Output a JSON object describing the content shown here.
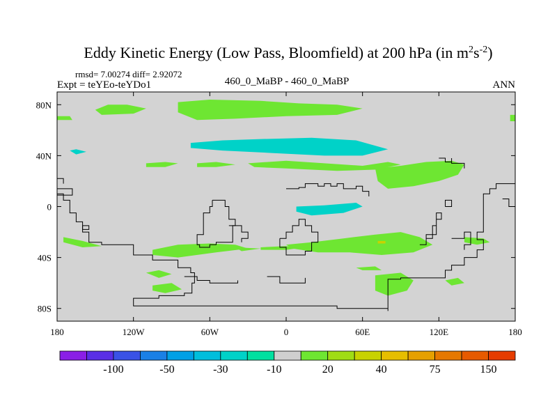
{
  "chart_data": {
    "type": "heatmap",
    "title": "Eddy Kinetic Energy (Low Pass, Bloomfield) at 200 hPa (in m",
    "title_units": {
      "base_m": "m",
      "sup1": "2",
      "base_s": "s",
      "sup2": "-2",
      "close": ")"
    },
    "stats": "rmsd= 7.00274 diff= 2.92072",
    "left_label": "Expt = teYEo-teYDo1",
    "center_label": "460_0_MaBP - 460_0_MaBP",
    "right_label": "ANN",
    "x_range": [
      -180,
      180
    ],
    "y_range": [
      -90,
      90
    ],
    "x_ticks": [
      {
        "value": -180,
        "label": "180"
      },
      {
        "value": -120,
        "label": "120W"
      },
      {
        "value": -60,
        "label": "60W"
      },
      {
        "value": 0,
        "label": "0"
      },
      {
        "value": 60,
        "label": "60E"
      },
      {
        "value": 120,
        "label": "120E"
      },
      {
        "value": 180,
        "label": "180"
      }
    ],
    "y_ticks": [
      {
        "value": 80,
        "label": "80N"
      },
      {
        "value": 40,
        "label": "40N"
      },
      {
        "value": 0,
        "label": "0"
      },
      {
        "value": -40,
        "label": "40S"
      },
      {
        "value": -80,
        "label": "80S"
      }
    ],
    "colorbar": {
      "colors": [
        "#8a1fe6",
        "#5a2ee6",
        "#3a52e6",
        "#1a80e6",
        "#00a0e6",
        "#00bedc",
        "#00d2c8",
        "#00e0a0",
        "#cfcfcf",
        "#6ee632",
        "#a0dc14",
        "#c8d200",
        "#e6be00",
        "#e6a000",
        "#e67800",
        "#e65a00",
        "#e63c00"
      ],
      "labels": [
        {
          "after_index": 1,
          "text": "-100"
        },
        {
          "after_index": 3,
          "text": "-50"
        },
        {
          "after_index": 5,
          "text": "-30"
        },
        {
          "after_index": 7,
          "text": "-10"
        },
        {
          "after_index": 9,
          "text": "20"
        },
        {
          "after_index": 11,
          "text": "40"
        },
        {
          "after_index": 13,
          "text": "75"
        },
        {
          "after_index": 15,
          "text": "150"
        }
      ]
    },
    "background_color": "#d3d3d3",
    "regions": [
      {
        "name": "green-arctic-west",
        "color": "#6ee632",
        "points": [
          [
            -150,
            76
          ],
          [
            -140,
            80
          ],
          [
            -125,
            80
          ],
          [
            -110,
            77
          ],
          [
            -120,
            73
          ],
          [
            -145,
            72
          ]
        ]
      },
      {
        "name": "green-arctic-main",
        "color": "#6ee632",
        "points": [
          [
            -85,
            82
          ],
          [
            -60,
            84
          ],
          [
            -20,
            83
          ],
          [
            10,
            81
          ],
          [
            40,
            80
          ],
          [
            60,
            77
          ],
          [
            40,
            72
          ],
          [
            0,
            71
          ],
          [
            -40,
            69
          ],
          [
            -70,
            68
          ],
          [
            -85,
            74
          ]
        ]
      },
      {
        "name": "green-west-edge",
        "color": "#6ee632",
        "points": [
          [
            -180,
            71
          ],
          [
            -170,
            71
          ],
          [
            -168,
            68
          ],
          [
            -180,
            68
          ]
        ]
      },
      {
        "name": "green-east-edge",
        "color": "#6ee632",
        "points": [
          [
            176,
            72
          ],
          [
            180,
            72
          ],
          [
            180,
            67
          ],
          [
            176,
            67
          ]
        ]
      },
      {
        "name": "cyan-jet",
        "color": "#00d2c8",
        "points": [
          [
            -75,
            50
          ],
          [
            -50,
            52
          ],
          [
            -20,
            53
          ],
          [
            20,
            54
          ],
          [
            55,
            52
          ],
          [
            80,
            45
          ],
          [
            60,
            40
          ],
          [
            30,
            40
          ],
          [
            -10,
            42
          ],
          [
            -50,
            44
          ],
          [
            -75,
            46
          ]
        ]
      },
      {
        "name": "cyan-pacific-small",
        "color": "#00d2c8",
        "points": [
          [
            -170,
            44
          ],
          [
            -165,
            45
          ],
          [
            -157,
            43
          ],
          [
            -165,
            41
          ]
        ]
      },
      {
        "name": "green-atlantic-north",
        "color": "#6ee632",
        "points": [
          [
            -110,
            34
          ],
          [
            -95,
            35
          ],
          [
            -85,
            34
          ],
          [
            -95,
            31
          ],
          [
            -110,
            31
          ]
        ]
      },
      {
        "name": "green-atlantic-north-2",
        "color": "#6ee632",
        "points": [
          [
            -70,
            34
          ],
          [
            -55,
            35
          ],
          [
            -40,
            33
          ],
          [
            -55,
            31
          ],
          [
            -70,
            31
          ]
        ]
      },
      {
        "name": "green-europe-north",
        "color": "#6ee632",
        "points": [
          [
            -30,
            34
          ],
          [
            0,
            36
          ],
          [
            30,
            34
          ],
          [
            60,
            32
          ],
          [
            80,
            35
          ],
          [
            90,
            33
          ],
          [
            70,
            29
          ],
          [
            40,
            28
          ],
          [
            0,
            30
          ],
          [
            -25,
            31
          ]
        ]
      },
      {
        "name": "green-asia",
        "color": "#6ee632",
        "points": [
          [
            70,
            30
          ],
          [
            90,
            32
          ],
          [
            110,
            35
          ],
          [
            130,
            36
          ],
          [
            140,
            33
          ],
          [
            135,
            25
          ],
          [
            120,
            20
          ],
          [
            100,
            16
          ],
          [
            80,
            14
          ],
          [
            72,
            20
          ]
        ]
      },
      {
        "name": "cyan-africa",
        "color": "#00d2c8",
        "points": [
          [
            8,
            0
          ],
          [
            30,
            1
          ],
          [
            55,
            3
          ],
          [
            60,
            0
          ],
          [
            45,
            -5
          ],
          [
            20,
            -7
          ],
          [
            8,
            -4
          ]
        ]
      },
      {
        "name": "green-southern-main",
        "color": "#6ee632",
        "points": [
          [
            0,
            -30
          ],
          [
            20,
            -28
          ],
          [
            45,
            -25
          ],
          [
            70,
            -22
          ],
          [
            90,
            -20
          ],
          [
            105,
            -24
          ],
          [
            115,
            -30
          ],
          [
            100,
            -36
          ],
          [
            75,
            -38
          ],
          [
            50,
            -36
          ],
          [
            25,
            -36
          ],
          [
            5,
            -33
          ]
        ]
      },
      {
        "name": "green-southern-east",
        "color": "#6ee632",
        "points": [
          [
            140,
            -24
          ],
          [
            155,
            -25
          ],
          [
            160,
            -28
          ],
          [
            150,
            -30
          ],
          [
            140,
            -28
          ]
        ]
      },
      {
        "name": "green-southern-west",
        "color": "#6ee632",
        "points": [
          [
            -175,
            -24
          ],
          [
            -160,
            -27
          ],
          [
            -145,
            -31
          ],
          [
            -160,
            -32
          ],
          [
            -175,
            -28
          ]
        ]
      },
      {
        "name": "green-southern-mid",
        "color": "#6ee632",
        "points": [
          [
            -105,
            -34
          ],
          [
            -85,
            -30
          ],
          [
            -60,
            -29
          ],
          [
            -40,
            -30
          ],
          [
            -30,
            -33
          ],
          [
            -55,
            -36
          ],
          [
            -85,
            -40
          ],
          [
            -105,
            -38
          ]
        ]
      },
      {
        "name": "green-southern-mid-2",
        "color": "#6ee632",
        "points": [
          [
            -40,
            -32
          ],
          [
            -20,
            -33
          ],
          [
            -35,
            -35
          ]
        ]
      },
      {
        "name": "green-southern-lower",
        "color": "#6ee632",
        "points": [
          [
            -20,
            -32
          ],
          [
            0,
            -31
          ],
          [
            15,
            -32
          ],
          [
            0,
            -34
          ],
          [
            -20,
            -34
          ]
        ]
      },
      {
        "name": "green-southern-small",
        "color": "#6ee632",
        "points": [
          [
            55,
            -48
          ],
          [
            70,
            -47
          ],
          [
            75,
            -50
          ],
          [
            60,
            -50
          ]
        ]
      },
      {
        "name": "green-antarctic-east",
        "color": "#6ee632",
        "points": [
          [
            70,
            -54
          ],
          [
            90,
            -52
          ],
          [
            100,
            -58
          ],
          [
            95,
            -66
          ],
          [
            80,
            -70
          ],
          [
            70,
            -66
          ]
        ]
      },
      {
        "name": "green-antarctic-east-2",
        "color": "#6ee632",
        "points": [
          [
            125,
            -58
          ],
          [
            135,
            -56
          ],
          [
            140,
            -60
          ],
          [
            130,
            -62
          ]
        ]
      },
      {
        "name": "green-pacific-s-1",
        "color": "#6ee632",
        "points": [
          [
            -110,
            -52
          ],
          [
            -100,
            -50
          ],
          [
            -90,
            -53
          ],
          [
            -100,
            -56
          ]
        ]
      },
      {
        "name": "green-pacific-s-2",
        "color": "#6ee632",
        "points": [
          [
            -105,
            -62
          ],
          [
            -90,
            -60
          ],
          [
            -82,
            -65
          ],
          [
            -95,
            -68
          ],
          [
            -105,
            -66
          ]
        ]
      },
      {
        "name": "yellow-spot",
        "color": "#c8d200",
        "points": [
          [
            72,
            -27
          ],
          [
            78,
            -27
          ],
          [
            78,
            -29
          ],
          [
            72,
            -29
          ]
        ]
      }
    ],
    "coastlines": [
      [
        [
          -180,
          10
        ],
        [
          -175,
          5
        ],
        [
          -170,
          -5
        ],
        [
          -165,
          -12
        ],
        [
          -160,
          -20
        ],
        [
          -155,
          -28
        ],
        [
          -145,
          -30
        ],
        [
          -130,
          -30
        ],
        [
          -120,
          -38
        ],
        [
          -105,
          -42
        ],
        [
          -85,
          -48
        ],
        [
          -78,
          -48
        ],
        [
          -75,
          -52
        ],
        [
          -72,
          -60
        ],
        [
          -74,
          -68
        ],
        [
          -80,
          -70
        ],
        [
          -100,
          -72
        ],
        [
          -120,
          -72
        ],
        [
          -120,
          -78
        ],
        [
          -60,
          -78
        ],
        [
          -10,
          -78
        ],
        [
          40,
          -80
        ],
        [
          80,
          -82
        ],
        [
          80,
          -57
        ],
        [
          90,
          -56
        ],
        [
          120,
          -56
        ],
        [
          125,
          -50
        ],
        [
          130,
          -46
        ],
        [
          140,
          -40
        ],
        [
          150,
          -34
        ],
        [
          155,
          -26
        ],
        [
          150,
          -20
        ],
        [
          155,
          -10
        ],
        [
          155,
          10
        ],
        [
          160,
          14
        ],
        [
          165,
          18
        ],
        [
          180,
          18
        ]
      ],
      [
        [
          -180,
          22
        ],
        [
          -175,
          22
        ],
        [
          -175,
          18
        ]
      ],
      [
        [
          -160,
          -15
        ],
        [
          -155,
          -15
        ],
        [
          -155,
          -18
        ],
        [
          -160,
          -18
        ],
        [
          -160,
          -15
        ]
      ],
      [
        [
          -58,
          5
        ],
        [
          -50,
          5
        ],
        [
          -48,
          0
        ],
        [
          -45,
          -10
        ],
        [
          -40,
          -15
        ],
        [
          -42,
          -28
        ],
        [
          -55,
          -30
        ],
        [
          -60,
          -32
        ],
        [
          -68,
          -30
        ],
        [
          -70,
          -22
        ],
        [
          -65,
          -15
        ],
        [
          -65,
          -5
        ],
        [
          -60,
          0
        ],
        [
          -58,
          5
        ]
      ],
      [
        [
          -45,
          -15
        ],
        [
          -35,
          -20
        ],
        [
          -30,
          -25
        ],
        [
          -35,
          -28
        ]
      ],
      [
        [
          -80,
          -55
        ],
        [
          -70,
          -58
        ],
        [
          -60,
          -60
        ],
        [
          -40,
          -60
        ],
        [
          -38,
          -58
        ]
      ],
      [
        [
          -15,
          -55
        ],
        [
          -5,
          -60
        ],
        [
          10,
          -60
        ],
        [
          15,
          -56
        ]
      ],
      [
        [
          0,
          14
        ],
        [
          10,
          15
        ],
        [
          15,
          18
        ],
        [
          25,
          16
        ],
        [
          30,
          18
        ],
        [
          35,
          16
        ],
        [
          40,
          18
        ],
        [
          45,
          14
        ],
        [
          55,
          16
        ],
        [
          60,
          12
        ],
        [
          65,
          8
        ]
      ],
      [
        [
          -5,
          -25
        ],
        [
          0,
          -20
        ],
        [
          5,
          -15
        ],
        [
          10,
          -10
        ],
        [
          15,
          -15
        ],
        [
          20,
          -20
        ],
        [
          25,
          -28
        ],
        [
          20,
          -35
        ],
        [
          15,
          -38
        ],
        [
          8,
          -38
        ],
        [
          0,
          -32
        ],
        [
          -5,
          -25
        ]
      ],
      [
        [
          120,
          38
        ],
        [
          125,
          35
        ],
        [
          130,
          38
        ],
        [
          130,
          34
        ],
        [
          140,
          30
        ]
      ],
      [
        [
          130,
          -25
        ],
        [
          140,
          -20
        ],
        [
          145,
          -30
        ],
        [
          140,
          -34
        ]
      ],
      [
        [
          170,
          6
        ],
        [
          175,
          0
        ],
        [
          180,
          5
        ]
      ],
      [
        [
          -180,
          14
        ],
        [
          -170,
          14
        ],
        [
          -168,
          9
        ],
        [
          -180,
          9
        ]
      ],
      [
        [
          125,
          0
        ],
        [
          125,
          5
        ],
        [
          130,
          5
        ],
        [
          130,
          0
        ],
        [
          125,
          0
        ]
      ],
      [
        [
          105,
          -30
        ],
        [
          110,
          -22
        ],
        [
          118,
          -10
        ],
        [
          122,
          -5
        ],
        [
          118,
          -15
        ],
        [
          115,
          -25
        ],
        [
          110,
          -30
        ],
        [
          105,
          -30
        ]
      ]
    ]
  }
}
